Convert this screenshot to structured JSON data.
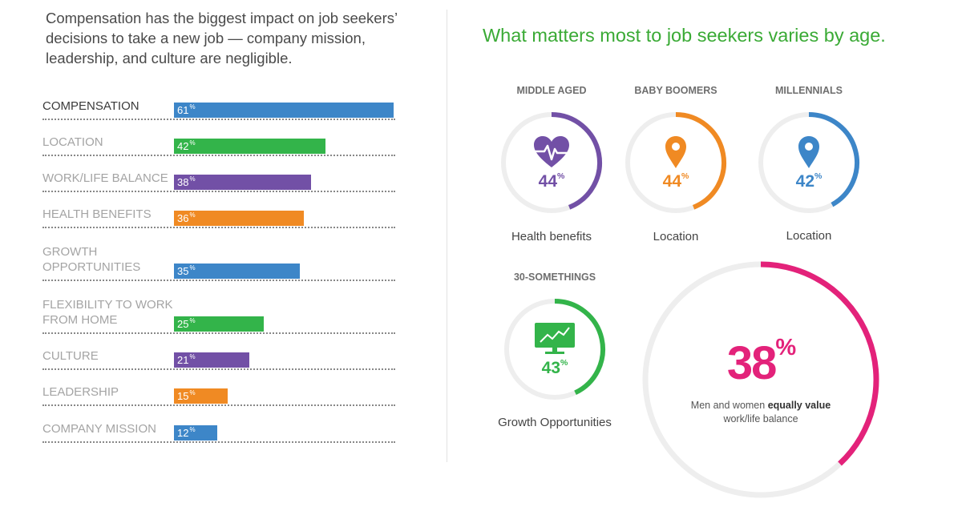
{
  "intro_text": "Compensation has the biggest impact on job seekers’ decisions to take a new job — company mission, leadership, and culture are negligible.",
  "right_title": "What matters most to job seekers varies by age.",
  "colors": {
    "blue": "#3d86c8",
    "green": "#33b44a",
    "purple": "#7250a6",
    "orange": "#f08a23",
    "pink": "#e3227a",
    "title_green": "#3aaa35",
    "track": "#eeeeee"
  },
  "chart_data": {
    "type": "bar",
    "orientation": "horizontal",
    "value_suffix": "%",
    "categories": [
      "COMPENSATION",
      "LOCATION",
      "WORK/LIFE BALANCE",
      "HEALTH BENEFITS",
      "GROWTH OPPORTUNITIES",
      "FLEXIBILITY TO WORK FROM HOME",
      "CULTURE",
      "LEADERSHIP",
      "COMPANY MISSION"
    ],
    "values": [
      61,
      42,
      38,
      36,
      35,
      25,
      21,
      15,
      12
    ],
    "bar_colors": [
      "blue",
      "green",
      "purple",
      "orange",
      "blue",
      "green",
      "purple",
      "orange",
      "blue"
    ]
  },
  "segments": [
    {
      "title": "MIDDLE AGED",
      "value": 44,
      "caption": "Health benefits",
      "color": "purple",
      "icon": "heart-pulse-icon"
    },
    {
      "title": "BABY BOOMERS",
      "value": 44,
      "caption": "Location",
      "color": "orange",
      "icon": "map-pin-icon"
    },
    {
      "title": "MILLENNIALS",
      "value": 42,
      "caption": "Location",
      "color": "blue",
      "icon": "map-pin-icon"
    },
    {
      "title": "30-SOMETHINGS",
      "value": 43,
      "caption": "Growth Opportunities",
      "color": "green",
      "icon": "monitor-chart-icon"
    }
  ],
  "gender": {
    "value": 38,
    "color": "pink",
    "caption_before": "Men and women ",
    "caption_bold": "equally value",
    "caption_after": "work/life balance"
  }
}
